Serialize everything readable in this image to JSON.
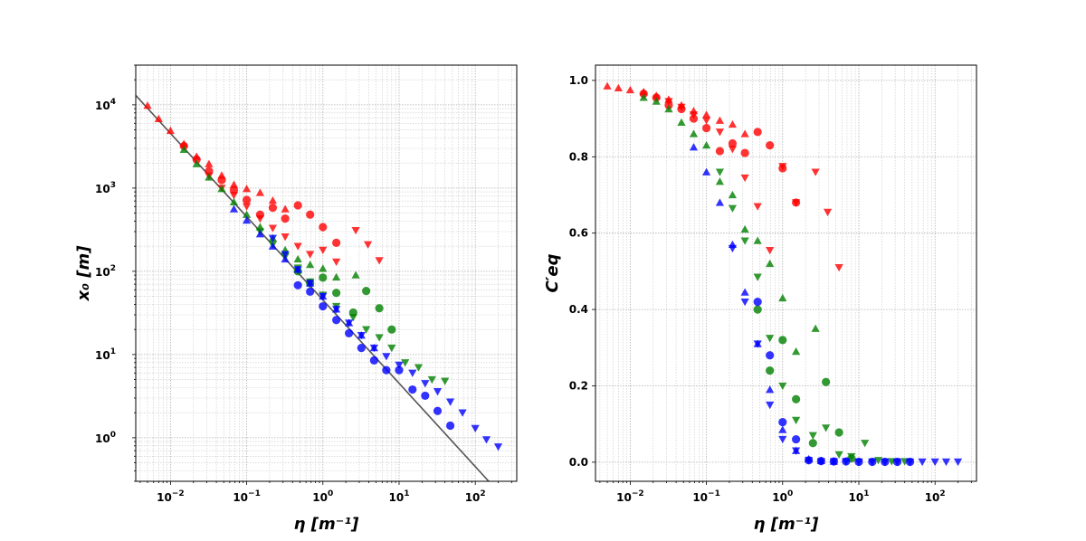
{
  "chart_data": [
    {
      "type": "scatter",
      "xscale": "log",
      "yscale": "log",
      "xlim": [
        0.0035,
        350
      ],
      "ylim": [
        0.3,
        30000
      ],
      "xlabel": "η [m⁻¹]",
      "ylabel": "x₀ [m]",
      "grid": true,
      "xticks": [
        0.01,
        0.1,
        1,
        10,
        100
      ],
      "xtick_labels": [
        {
          "base": "10",
          "exp": "−2"
        },
        {
          "base": "10",
          "exp": "−1"
        },
        {
          "base": "10",
          "exp": "0"
        },
        {
          "base": "10",
          "exp": "1"
        },
        {
          "base": "10",
          "exp": "2"
        }
      ],
      "yticks": [
        1,
        10,
        100,
        1000,
        10000
      ],
      "ytick_labels": [
        {
          "base": "10",
          "exp": "0"
        },
        {
          "base": "10",
          "exp": "1"
        },
        {
          "base": "10",
          "exp": "2"
        },
        {
          "base": "10",
          "exp": "3"
        },
        {
          "base": "10",
          "exp": "4"
        }
      ],
      "reference_line": {
        "color": "#555555",
        "x": [
          0.0035,
          150
        ],
        "y": [
          13000,
          0.3
        ]
      },
      "series": [
        {
          "color": "#ff0000",
          "marker": "triangle-up",
          "x": [
            0.005,
            0.007,
            0.01,
            0.015,
            0.022,
            0.032,
            0.047,
            0.068,
            0.1,
            0.15,
            0.22,
            0.32
          ],
          "y": [
            9800,
            6800,
            4900,
            3400,
            2400,
            1950,
            1420,
            1100,
            980,
            880,
            710,
            560
          ]
        },
        {
          "color": "#ff0000",
          "marker": "circle",
          "x": [
            0.015,
            0.022,
            0.032,
            0.047,
            0.068,
            0.1,
            0.15,
            0.22,
            0.32,
            0.47,
            0.68,
            1.0,
            1.5
          ],
          "y": [
            3200,
            2200,
            1600,
            1250,
            950,
            720,
            480,
            580,
            430,
            620,
            480,
            340,
            220
          ]
        },
        {
          "color": "#ff0000",
          "marker": "triangle-down",
          "x": [
            0.032,
            0.047,
            0.068,
            0.1,
            0.15,
            0.22,
            0.32,
            0.47,
            0.68,
            1.0,
            1.5,
            2.7,
            3.9,
            5.5
          ],
          "y": [
            1400,
            1000,
            820,
            600,
            430,
            330,
            260,
            200,
            160,
            180,
            130,
            310,
            210,
            135
          ]
        },
        {
          "color": "#008000",
          "marker": "triangle-up",
          "x": [
            0.015,
            0.022,
            0.032,
            0.047,
            0.068,
            0.1,
            0.15,
            0.22,
            0.32,
            0.47,
            0.68,
            1.0,
            1.5,
            2.7
          ],
          "y": [
            2900,
            1950,
            1350,
            980,
            680,
            480,
            340,
            250,
            180,
            140,
            120,
            108,
            85,
            90
          ]
        },
        {
          "color": "#008000",
          "marker": "circle",
          "x": [
            0.47,
            0.68,
            1.0,
            1.5,
            2.5,
            3.7,
            5.5,
            8.0
          ],
          "y": [
            100,
            72,
            84,
            55,
            32,
            58,
            36,
            20
          ]
        },
        {
          "color": "#008000",
          "marker": "triangle-down",
          "x": [
            0.15,
            0.22,
            0.32,
            0.47,
            0.68,
            1.0,
            1.5,
            2.5,
            3.7,
            5.5,
            8.0,
            12,
            18,
            27,
            40
          ],
          "y": [
            300,
            210,
            150,
            110,
            75,
            52,
            38,
            28,
            20,
            16,
            12,
            8,
            7,
            5,
            4.8
          ]
        },
        {
          "color": "#0000ff",
          "marker": "triangle-up",
          "x": [
            0.068,
            0.1,
            0.15,
            0.22,
            0.32,
            0.47,
            0.68,
            1.0,
            1.5,
            2.2,
            3.2,
            4.7
          ],
          "y": [
            560,
            410,
            280,
            200,
            140,
            105,
            72,
            50,
            35,
            24,
            17,
            12
          ]
        },
        {
          "color": "#0000ff",
          "marker": "circle",
          "x": [
            0.47,
            0.68,
            1.0,
            1.5,
            2.2,
            3.2,
            4.7,
            6.8,
            10,
            15,
            22,
            32,
            47
          ],
          "y": [
            68,
            57,
            38,
            26,
            18,
            12,
            8.5,
            6.5,
            6.5,
            3.8,
            3.2,
            2.1,
            1.4
          ]
        },
        {
          "color": "#0000ff",
          "marker": "triangle-down",
          "x": [
            0.22,
            0.32,
            0.47,
            0.68,
            1.0,
            1.5,
            2.2,
            3.2,
            4.7,
            6.8,
            10,
            15,
            22,
            32,
            47,
            68,
            100,
            140,
            200
          ],
          "y": [
            250,
            160,
            105,
            72,
            50,
            35,
            24,
            17,
            12,
            9.5,
            7.5,
            6,
            4.5,
            3.6,
            2.7,
            2.0,
            1.3,
            0.95,
            0.78
          ]
        }
      ]
    },
    {
      "type": "scatter",
      "xscale": "log",
      "yscale": "linear",
      "xlim": [
        0.0035,
        350
      ],
      "ylim": [
        -0.05,
        1.04
      ],
      "xlabel": "η [m⁻¹]",
      "ylabel": "C′eq",
      "grid": true,
      "xticks": [
        0.01,
        0.1,
        1,
        10,
        100
      ],
      "xtick_labels": [
        {
          "base": "10",
          "exp": "−2"
        },
        {
          "base": "10",
          "exp": "−1"
        },
        {
          "base": "10",
          "exp": "0"
        },
        {
          "base": "10",
          "exp": "1"
        },
        {
          "base": "10",
          "exp": "2"
        }
      ],
      "yticks": [
        0.0,
        0.2,
        0.4,
        0.6,
        0.8,
        1.0
      ],
      "ytick_labels": [
        "0.0",
        "0.2",
        "0.4",
        "0.6",
        "0.8",
        "1.0"
      ],
      "series": [
        {
          "color": "#ff0000",
          "marker": "triangle-up",
          "x": [
            0.005,
            0.007,
            0.01,
            0.015,
            0.022,
            0.032,
            0.047,
            0.068,
            0.1,
            0.15,
            0.22,
            0.32
          ],
          "y": [
            0.985,
            0.98,
            0.975,
            0.97,
            0.96,
            0.95,
            0.935,
            0.92,
            0.91,
            0.895,
            0.885,
            0.86
          ]
        },
        {
          "color": "#ff0000",
          "marker": "circle",
          "x": [
            0.015,
            0.022,
            0.032,
            0.047,
            0.068,
            0.1,
            0.15,
            0.22,
            0.32,
            0.47,
            0.68,
            1.0,
            1.5
          ],
          "y": [
            0.965,
            0.955,
            0.935,
            0.925,
            0.9,
            0.875,
            0.815,
            0.835,
            0.81,
            0.865,
            0.83,
            0.77,
            0.68
          ]
        },
        {
          "color": "#ff0000",
          "marker": "triangle-down",
          "x": [
            0.032,
            0.047,
            0.068,
            0.1,
            0.15,
            0.22,
            0.32,
            0.47,
            0.68,
            1.0,
            1.5,
            2.7,
            3.9,
            5.5
          ],
          "y": [
            0.945,
            0.93,
            0.91,
            0.895,
            0.865,
            0.82,
            0.745,
            0.67,
            0.555,
            0.775,
            0.68,
            0.76,
            0.655,
            0.51
          ]
        },
        {
          "color": "#008000",
          "marker": "triangle-up",
          "x": [
            0.015,
            0.022,
            0.032,
            0.047,
            0.068,
            0.1,
            0.15,
            0.22,
            0.32,
            0.47,
            0.68,
            1.0,
            1.5,
            2.7
          ],
          "y": [
            0.955,
            0.945,
            0.925,
            0.89,
            0.86,
            0.83,
            0.735,
            0.7,
            0.61,
            0.58,
            0.52,
            0.43,
            0.29,
            0.35
          ]
        },
        {
          "color": "#008000",
          "marker": "circle",
          "x": [
            0.47,
            0.68,
            1.0,
            1.5,
            2.5,
            3.7,
            5.5,
            8.0
          ],
          "y": [
            0.4,
            0.24,
            0.32,
            0.165,
            0.05,
            0.21,
            0.078,
            0.01
          ]
        },
        {
          "color": "#008000",
          "marker": "triangle-down",
          "x": [
            0.15,
            0.22,
            0.32,
            0.47,
            0.68,
            1.0,
            1.5,
            2.5,
            3.7,
            5.5,
            8.0,
            12,
            18,
            27,
            40
          ],
          "y": [
            0.76,
            0.665,
            0.58,
            0.485,
            0.325,
            0.2,
            0.11,
            0.07,
            0.09,
            0.02,
            0.015,
            0.05,
            0.005,
            0.002,
            0.002
          ]
        },
        {
          "color": "#0000ff",
          "marker": "triangle-up",
          "x": [
            0.068,
            0.1,
            0.15,
            0.22,
            0.32,
            0.47,
            0.68,
            1.0,
            1.5,
            2.2,
            3.2,
            4.7
          ],
          "y": [
            0.825,
            0.76,
            0.68,
            0.57,
            0.445,
            0.31,
            0.19,
            0.085,
            0.03,
            0.008,
            0.004,
            0.002
          ]
        },
        {
          "color": "#0000ff",
          "marker": "circle",
          "x": [
            0.47,
            0.68,
            1.0,
            1.5,
            2.2,
            3.2,
            4.7,
            6.8,
            10,
            15,
            22,
            32,
            47
          ],
          "y": [
            0.42,
            0.28,
            0.105,
            0.06,
            0.005,
            0.003,
            0.002,
            0.002,
            0.001,
            0.001,
            0.001,
            0.001,
            0.001
          ]
        },
        {
          "color": "#0000ff",
          "marker": "triangle-down",
          "x": [
            0.22,
            0.32,
            0.47,
            0.68,
            1.0,
            1.5,
            2.2,
            3.2,
            4.7,
            6.8,
            10,
            15,
            22,
            32,
            47,
            68,
            100,
            140,
            200
          ],
          "y": [
            0.56,
            0.42,
            0.31,
            0.15,
            0.06,
            0.03,
            0.005,
            0.002,
            0.002,
            0.002,
            0.001,
            0.001,
            0.001,
            0.001,
            0.001,
            0.001,
            0.001,
            0.001,
            0.001
          ]
        }
      ]
    }
  ]
}
